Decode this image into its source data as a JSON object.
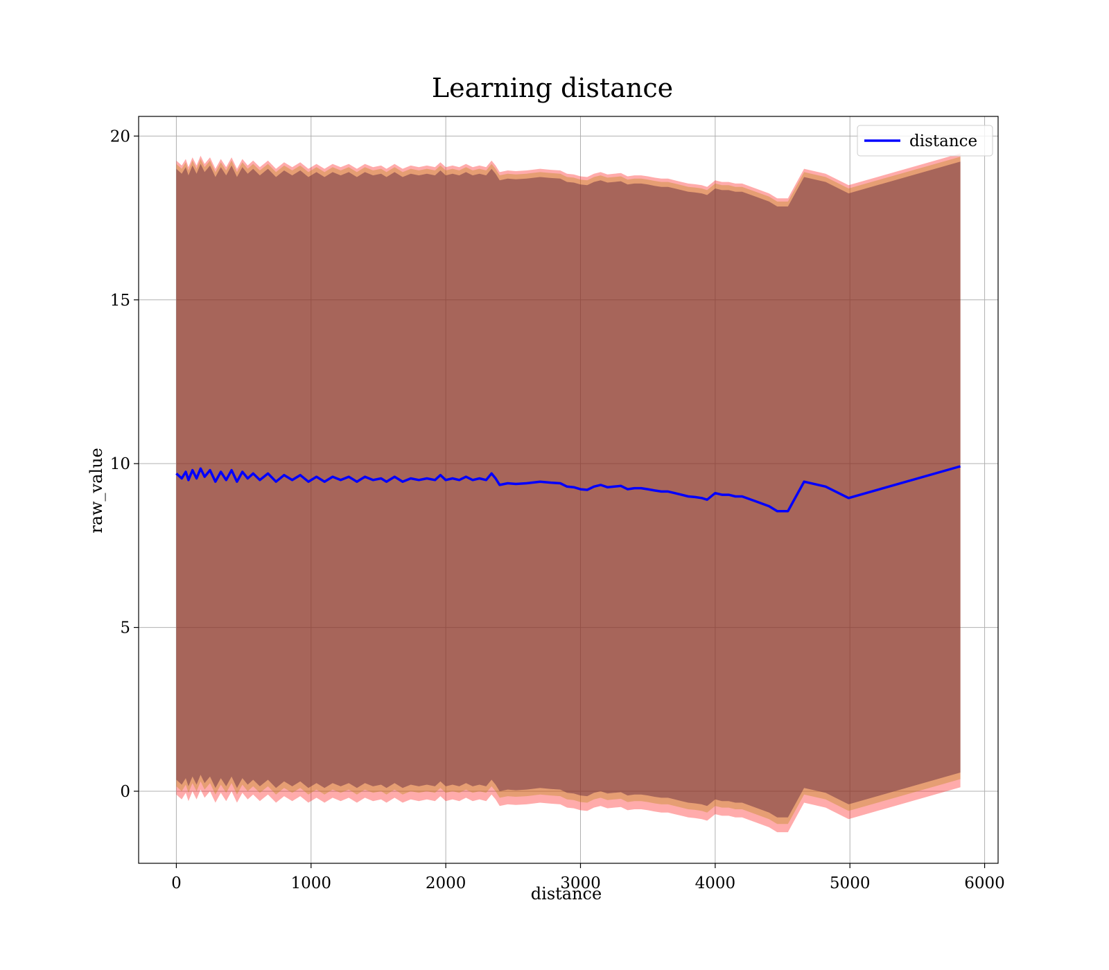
{
  "chart_data": {
    "type": "line",
    "title": "Learning distance",
    "xlabel": "distance",
    "ylabel": "raw_value",
    "xlim": [
      -280,
      6100
    ],
    "ylim": [
      -2.2,
      20.6
    ],
    "xticks": [
      0,
      1000,
      2000,
      3000,
      4000,
      5000,
      6000
    ],
    "yticks": [
      0,
      5,
      10,
      15,
      20
    ],
    "grid": true,
    "legend_position": "top-right",
    "series": [
      {
        "name": "distance",
        "color": "#0000ff",
        "x": [
          0,
          40,
          70,
          90,
          120,
          150,
          180,
          210,
          250,
          290,
          330,
          370,
          410,
          450,
          490,
          530,
          570,
          620,
          680,
          740,
          800,
          860,
          920,
          980,
          1040,
          1100,
          1160,
          1220,
          1280,
          1340,
          1400,
          1460,
          1520,
          1560,
          1620,
          1680,
          1740,
          1800,
          1860,
          1920,
          1960,
          2000,
          2050,
          2100,
          2150,
          2200,
          2250,
          2300,
          2340,
          2370,
          2400,
          2460,
          2520,
          2600,
          2700,
          2780,
          2850,
          2900,
          2950,
          3000,
          3050,
          3100,
          3150,
          3200,
          3250,
          3300,
          3350,
          3400,
          3450,
          3500,
          3550,
          3600,
          3650,
          3700,
          3750,
          3800,
          3850,
          3900,
          3940,
          4000,
          4050,
          4100,
          4150,
          4200,
          4300,
          4400,
          4460,
          4540,
          4660,
          4820,
          4990,
          5820
        ],
        "y": [
          9.7,
          9.55,
          9.75,
          9.5,
          9.8,
          9.55,
          9.85,
          9.6,
          9.8,
          9.45,
          9.75,
          9.5,
          9.8,
          9.45,
          9.75,
          9.55,
          9.7,
          9.5,
          9.7,
          9.45,
          9.65,
          9.5,
          9.65,
          9.45,
          9.6,
          9.45,
          9.6,
          9.5,
          9.6,
          9.45,
          9.6,
          9.5,
          9.55,
          9.45,
          9.6,
          9.45,
          9.55,
          9.5,
          9.55,
          9.5,
          9.65,
          9.5,
          9.55,
          9.5,
          9.6,
          9.5,
          9.55,
          9.5,
          9.7,
          9.55,
          9.35,
          9.4,
          9.38,
          9.4,
          9.45,
          9.42,
          9.4,
          9.3,
          9.28,
          9.22,
          9.2,
          9.3,
          9.35,
          9.28,
          9.3,
          9.32,
          9.22,
          9.25,
          9.25,
          9.22,
          9.18,
          9.15,
          9.15,
          9.1,
          9.05,
          9.0,
          8.98,
          8.95,
          8.9,
          9.1,
          9.05,
          9.05,
          9.0,
          9.0,
          8.85,
          8.7,
          8.55,
          8.55,
          9.45,
          9.3,
          8.95,
          9.92
        ]
      }
    ],
    "bands": [
      {
        "color": "#ff0000",
        "opacity": 0.33,
        "lower_offset": -9.8,
        "upper_offset": 9.55
      },
      {
        "color": "#b8860b",
        "opacity": 0.35,
        "lower_offset": -9.55,
        "upper_offset": 9.45
      },
      {
        "color": "#5a1e3c",
        "opacity": 0.45,
        "lower_offset": -9.35,
        "upper_offset": 9.3
      }
    ]
  }
}
